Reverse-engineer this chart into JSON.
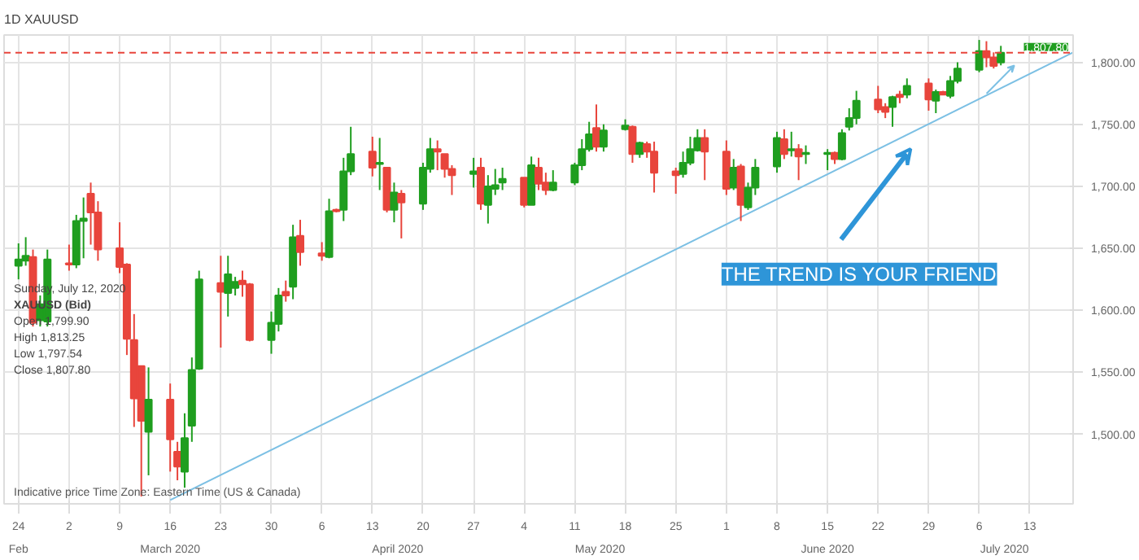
{
  "chart_data": {
    "type": "candlestick",
    "title": "1D   XAUUSD",
    "x": [
      "2020-02-24",
      "2020-02-25",
      "2020-02-26",
      "2020-02-27",
      "2020-02-28",
      "2020-03-02",
      "2020-03-03",
      "2020-03-04",
      "2020-03-05",
      "2020-03-06",
      "2020-03-09",
      "2020-03-10",
      "2020-03-11",
      "2020-03-12",
      "2020-03-13",
      "2020-03-16",
      "2020-03-17",
      "2020-03-18",
      "2020-03-19",
      "2020-03-20",
      "2020-03-23",
      "2020-03-24",
      "2020-03-25",
      "2020-03-26",
      "2020-03-27",
      "2020-03-30",
      "2020-03-31",
      "2020-04-01",
      "2020-04-02",
      "2020-04-03",
      "2020-04-06",
      "2020-04-07",
      "2020-04-08",
      "2020-04-09",
      "2020-04-10",
      "2020-04-13",
      "2020-04-14",
      "2020-04-15",
      "2020-04-16",
      "2020-04-17",
      "2020-04-20",
      "2020-04-21",
      "2020-04-22",
      "2020-04-23",
      "2020-04-24",
      "2020-04-27",
      "2020-04-28",
      "2020-04-29",
      "2020-04-30",
      "2020-05-01",
      "2020-05-04",
      "2020-05-05",
      "2020-05-06",
      "2020-05-07",
      "2020-05-08",
      "2020-05-11",
      "2020-05-12",
      "2020-05-13",
      "2020-05-14",
      "2020-05-15",
      "2020-05-18",
      "2020-05-19",
      "2020-05-20",
      "2020-05-21",
      "2020-05-22",
      "2020-05-25",
      "2020-05-26",
      "2020-05-27",
      "2020-05-28",
      "2020-05-29",
      "2020-06-01",
      "2020-06-02",
      "2020-06-03",
      "2020-06-04",
      "2020-06-05",
      "2020-06-08",
      "2020-06-09",
      "2020-06-10",
      "2020-06-11",
      "2020-06-12",
      "2020-06-15",
      "2020-06-16",
      "2020-06-17",
      "2020-06-18",
      "2020-06-19",
      "2020-06-22",
      "2020-06-23",
      "2020-06-24",
      "2020-06-25",
      "2020-06-26",
      "2020-06-29",
      "2020-06-30",
      "2020-07-01",
      "2020-07-02",
      "2020-07-03",
      "2020-07-06",
      "2020-07-07",
      "2020-07-08",
      "2020-07-09"
    ],
    "ohlc": [
      [
        1636,
        1654,
        1625,
        1641
      ],
      [
        1640,
        1659,
        1636,
        1644
      ],
      [
        1643,
        1649,
        1587,
        1590
      ],
      [
        1592,
        1612,
        1587,
        1605
      ],
      [
        1591,
        1649,
        1587,
        1641
      ],
      [
        1638,
        1653,
        1632,
        1637
      ],
      [
        1637,
        1677,
        1634,
        1672
      ],
      [
        1672,
        1691,
        1642,
        1674
      ],
      [
        1694,
        1703,
        1653,
        1679
      ],
      [
        1679,
        1688,
        1640,
        1649
      ],
      [
        1650,
        1671,
        1630,
        1635
      ],
      [
        1637,
        1638,
        1564,
        1577
      ],
      [
        1576,
        1597,
        1506,
        1529
      ],
      [
        1555,
        1555,
        1450,
        1511
      ],
      [
        1502,
        1554,
        1467,
        1528
      ],
      [
        1528,
        1541,
        1470,
        1496
      ],
      [
        1486,
        1494,
        1463,
        1474
      ],
      [
        1470,
        1517,
        1457,
        1497
      ],
      [
        1507,
        1562,
        1494,
        1552
      ],
      [
        1553,
        1632,
        1552,
        1625
      ],
      [
        1622,
        1644,
        1570,
        1615
      ],
      [
        1614,
        1644,
        1595,
        1629
      ],
      [
        1618,
        1627,
        1612,
        1623
      ],
      [
        1624,
        1632,
        1611,
        1621
      ],
      [
        1621,
        1622,
        1575,
        1576
      ],
      [
        1576,
        1599,
        1565,
        1590
      ],
      [
        1589,
        1618,
        1583,
        1612
      ],
      [
        1615,
        1624,
        1607,
        1612
      ],
      [
        1619,
        1669,
        1609,
        1659
      ],
      [
        1660,
        1673,
        1636,
        1647
      ],
      [
        1646,
        1655,
        1640,
        1644
      ],
      [
        1643,
        1690,
        1642,
        1680
      ],
      [
        1681,
        1682,
        1679,
        1680
      ],
      [
        1681,
        1723,
        1672,
        1712
      ],
      [
        1712,
        1748,
        1709,
        1726
      ],
      [
        1728,
        1740,
        1708,
        1715
      ],
      [
        1718,
        1739,
        1697,
        1719
      ],
      [
        1715,
        1715,
        1679,
        1681
      ],
      [
        1681,
        1703,
        1671,
        1695
      ],
      [
        1694,
        1697,
        1658,
        1687
      ],
      [
        1686,
        1719,
        1681,
        1715
      ],
      [
        1714,
        1739,
        1711,
        1730
      ],
      [
        1730,
        1737,
        1713,
        1728
      ],
      [
        1726,
        1726,
        1707,
        1714
      ],
      [
        1714,
        1717,
        1693,
        1709
      ],
      [
        1710,
        1723,
        1699,
        1712
      ],
      [
        1715,
        1723,
        1681,
        1686
      ],
      [
        1685,
        1709,
        1670,
        1700
      ],
      [
        1698,
        1714,
        1693,
        1701
      ],
      [
        1703,
        1715,
        1697,
        1706
      ],
      [
        1707,
        1707,
        1683,
        1685
      ],
      [
        1685,
        1724,
        1685,
        1717
      ],
      [
        1715,
        1723,
        1697,
        1702
      ],
      [
        1703,
        1711,
        1693,
        1697
      ],
      [
        1697,
        1713,
        1696,
        1703
      ],
      [
        1703,
        1719,
        1701,
        1717
      ],
      [
        1717,
        1738,
        1713,
        1730
      ],
      [
        1730,
        1752,
        1728,
        1742
      ],
      [
        1747,
        1766,
        1728,
        1732
      ],
      [
        1732,
        1750,
        1728,
        1745
      ],
      [
        1746,
        1754,
        1745,
        1749
      ],
      [
        1748,
        1749,
        1719,
        1726
      ],
      [
        1726,
        1736,
        1723,
        1735
      ],
      [
        1734,
        1736,
        1723,
        1728
      ],
      [
        1728,
        1736,
        1695,
        1711
      ],
      [
        1712,
        1715,
        1694,
        1709
      ],
      [
        1710,
        1728,
        1707,
        1719
      ],
      [
        1719,
        1740,
        1717,
        1730
      ],
      [
        1729,
        1746,
        1728,
        1739
      ],
      [
        1739,
        1746,
        1705,
        1728
      ],
      [
        1728,
        1737,
        1693,
        1698
      ],
      [
        1699,
        1722,
        1697,
        1715
      ],
      [
        1716,
        1718,
        1672,
        1685
      ],
      [
        1683,
        1703,
        1681,
        1699
      ],
      [
        1699,
        1722,
        1693,
        1715
      ],
      [
        1716,
        1744,
        1711,
        1739
      ],
      [
        1738,
        1746,
        1722,
        1726
      ],
      [
        1729,
        1744,
        1724,
        1730
      ],
      [
        1730,
        1734,
        1705,
        1724
      ],
      [
        1726,
        1733,
        1718,
        1727
      ],
      [
        1726,
        1730,
        1713,
        1727
      ],
      [
        1727,
        1728,
        1718,
        1722
      ],
      [
        1722,
        1746,
        1721,
        1743
      ],
      [
        1748,
        1763,
        1745,
        1755
      ],
      [
        1755,
        1777,
        1750,
        1769
      ],
      [
        1770,
        1781,
        1759,
        1762
      ],
      [
        1764,
        1767,
        1755,
        1760
      ],
      [
        1764,
        1773,
        1748,
        1772
      ],
      [
        1774,
        1777,
        1767,
        1772
      ],
      [
        1774,
        1787,
        1771,
        1781
      ],
      [
        1783,
        1787,
        1761,
        1770
      ],
      [
        1769,
        1778,
        1759,
        1776
      ],
      [
        1776,
        1777,
        1774,
        1774
      ],
      [
        1773,
        1789,
        1771,
        1785
      ],
      [
        1785,
        1800,
        1783,
        1795
      ],
      [
        1794,
        1818,
        1792,
        1809
      ],
      [
        1809,
        1817,
        1796,
        1804
      ],
      [
        1804,
        1808,
        1795,
        1797
      ],
      [
        1799.9,
        1813.25,
        1797.54,
        1807.8
      ]
    ],
    "colors": [
      "#1f9e1f",
      "#1f9e1f",
      "#e8453c",
      "#1f9e1f",
      "#1f9e1f",
      "#e8453c",
      "#1f9e1f",
      "#1f9e1f",
      "#e8453c",
      "#e8453c",
      "#e8453c",
      "#e8453c",
      "#e8453c",
      "#e8453c",
      "#1f9e1f",
      "#e8453c",
      "#e8453c",
      "#1f9e1f",
      "#1f9e1f",
      "#1f9e1f",
      "#e8453c",
      "#1f9e1f",
      "#1f9e1f",
      "#e8453c",
      "#e8453c",
      "#1f9e1f",
      "#1f9e1f",
      "#e8453c",
      "#1f9e1f",
      "#e8453c",
      "#e8453c",
      "#1f9e1f",
      "#e8453c",
      "#1f9e1f",
      "#1f9e1f",
      "#e8453c",
      "#1f9e1f",
      "#e8453c",
      "#1f9e1f",
      "#e8453c",
      "#1f9e1f",
      "#1f9e1f",
      "#e8453c",
      "#e8453c",
      "#e8453c",
      "#1f9e1f",
      "#e8453c",
      "#1f9e1f",
      "#1f9e1f",
      "#1f9e1f",
      "#e8453c",
      "#1f9e1f",
      "#e8453c",
      "#e8453c",
      "#1f9e1f",
      "#1f9e1f",
      "#1f9e1f",
      "#1f9e1f",
      "#e8453c",
      "#1f9e1f",
      "#1f9e1f",
      "#e8453c",
      "#1f9e1f",
      "#e8453c",
      "#e8453c",
      "#e8453c",
      "#1f9e1f",
      "#1f9e1f",
      "#1f9e1f",
      "#e8453c",
      "#e8453c",
      "#1f9e1f",
      "#e8453c",
      "#1f9e1f",
      "#1f9e1f",
      "#1f9e1f",
      "#e8453c",
      "#1f9e1f",
      "#e8453c",
      "#1f9e1f",
      "#1f9e1f",
      "#e8453c",
      "#1f9e1f",
      "#1f9e1f",
      "#1f9e1f",
      "#e8453c",
      "#e8453c",
      "#1f9e1f",
      "#e8453c",
      "#1f9e1f",
      "#e8453c",
      "#1f9e1f",
      "#e8453c",
      "#1f9e1f",
      "#1f9e1f",
      "#1f9e1f",
      "#e8453c",
      "#e8453c",
      "#1f9e1f"
    ],
    "series": [
      {
        "type": "line",
        "x": [
          "2020-03-16",
          "2020-07-19"
        ],
        "values": [
          1447,
          1808
        ],
        "color": "#7cc0e4"
      }
    ],
    "xlim": [
      "2020-02-22",
      "2020-07-19"
    ],
    "ylim": [
      1444,
      1822
    ],
    "xticks": [
      {
        "value": "2020-02-24",
        "label": "24"
      },
      {
        "value": "2020-03-02",
        "label": "2"
      },
      {
        "value": "2020-03-09",
        "label": "9"
      },
      {
        "value": "2020-03-16",
        "label": "16"
      },
      {
        "value": "2020-03-23",
        "label": "23"
      },
      {
        "value": "2020-03-30",
        "label": "30"
      },
      {
        "value": "2020-04-06",
        "label": "6"
      },
      {
        "value": "2020-04-13",
        "label": "13"
      },
      {
        "value": "2020-04-20",
        "label": "20"
      },
      {
        "value": "2020-04-27",
        "label": "27"
      },
      {
        "value": "2020-05-04",
        "label": "4"
      },
      {
        "value": "2020-05-11",
        "label": "11"
      },
      {
        "value": "2020-05-18",
        "label": "18"
      },
      {
        "value": "2020-05-25",
        "label": "25"
      },
      {
        "value": "2020-06-01",
        "label": "1"
      },
      {
        "value": "2020-06-08",
        "label": "8"
      },
      {
        "value": "2020-06-15",
        "label": "15"
      },
      {
        "value": "2020-06-22",
        "label": "22"
      },
      {
        "value": "2020-06-29",
        "label": "29"
      },
      {
        "value": "2020-07-06",
        "label": "6"
      },
      {
        "value": "2020-07-13",
        "label": "13"
      }
    ],
    "yticks": [
      {
        "value": 1500,
        "label": "1,500.00"
      },
      {
        "value": 1550,
        "label": "1,550.00"
      },
      {
        "value": 1600,
        "label": "1,600.00"
      },
      {
        "value": 1650,
        "label": "1,650.00"
      },
      {
        "value": 1700,
        "label": "1,700.00"
      },
      {
        "value": 1750,
        "label": "1,750.00"
      },
      {
        "value": 1800,
        "label": "1,800.00"
      }
    ],
    "grid": true,
    "ref_lines": [
      {
        "axis": "y",
        "value": 1807.8,
        "label": "1,807.80",
        "color": "#e8453c",
        "line_style": "dashed"
      }
    ],
    "annotations": [
      "THE TREND IS YOUR FRIEND",
      "Sunday, July 12, 2020",
      "XAUUSD (Bid)",
      "Open      1,799.90",
      "High       1,813.25",
      "Low        1,797.54",
      "Close      1,807.80",
      "Indicative price    Time Zone: Eastern Time (US & Canada)",
      "Feb",
      "March 2020",
      "April 2020",
      "May 2020",
      "June 2020",
      "July 2020"
    ]
  }
}
